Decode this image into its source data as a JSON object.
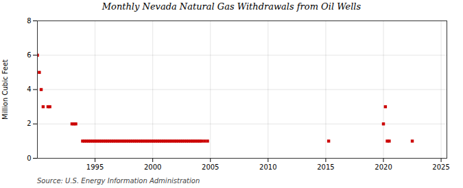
{
  "chart_data": {
    "type": "scatter",
    "title": "Monthly Nevada Natural Gas Withdrawals from Oil Wells",
    "ylabel": "Million Cubic Feet",
    "source": "Source: U.S. Energy Information Administration",
    "color": "#cc0000",
    "marker": "square",
    "grid": true,
    "xlim": [
      1990.0,
      2025.5
    ],
    "ylim": [
      0,
      8
    ],
    "xticks": [
      1995,
      2000,
      2005,
      2010,
      2015,
      2020,
      2025
    ],
    "yticks": [
      0,
      2,
      4,
      6,
      8
    ],
    "x": [
      1990.0,
      1990.17,
      1990.33,
      1990.5,
      1990.92,
      1991.08,
      1993.0,
      1993.17,
      1993.33,
      1993.92,
      1994.08,
      1994.25,
      1994.42,
      1994.58,
      1994.75,
      1994.92,
      1995.08,
      1995.25,
      1995.42,
      1995.58,
      1995.75,
      1995.92,
      1996.08,
      1996.25,
      1996.42,
      1996.58,
      1996.75,
      1996.92,
      1997.08,
      1997.25,
      1997.42,
      1997.58,
      1997.75,
      1997.92,
      1998.08,
      1998.25,
      1998.42,
      1998.58,
      1998.75,
      1998.92,
      1999.08,
      1999.25,
      1999.42,
      1999.58,
      1999.75,
      1999.92,
      2000.08,
      2000.25,
      2000.42,
      2000.58,
      2000.75,
      2000.92,
      2001.08,
      2001.25,
      2001.42,
      2001.58,
      2001.75,
      2001.92,
      2002.08,
      2002.25,
      2002.42,
      2002.58,
      2002.75,
      2002.92,
      2003.08,
      2003.25,
      2003.42,
      2003.58,
      2003.75,
      2003.92,
      2004.08,
      2004.25,
      2004.5,
      2004.75,
      2015.25,
      2020.0,
      2020.17,
      2020.33,
      2020.5,
      2022.5
    ],
    "values": [
      6.0,
      5.0,
      4.0,
      3.0,
      3.0,
      3.0,
      2.0,
      2.0,
      2.0,
      1.0,
      1.0,
      1.0,
      1.0,
      1.0,
      1.0,
      1.0,
      1.0,
      1.0,
      1.0,
      1.0,
      1.0,
      1.0,
      1.0,
      1.0,
      1.0,
      1.0,
      1.0,
      1.0,
      1.0,
      1.0,
      1.0,
      1.0,
      1.0,
      1.0,
      1.0,
      1.0,
      1.0,
      1.0,
      1.0,
      1.0,
      1.0,
      1.0,
      1.0,
      1.0,
      1.0,
      1.0,
      1.0,
      1.0,
      1.0,
      1.0,
      1.0,
      1.0,
      1.0,
      1.0,
      1.0,
      1.0,
      1.0,
      1.0,
      1.0,
      1.0,
      1.0,
      1.0,
      1.0,
      1.0,
      1.0,
      1.0,
      1.0,
      1.0,
      1.0,
      1.0,
      1.0,
      1.0,
      1.0,
      1.0,
      1.0,
      2.0,
      3.0,
      1.0,
      1.0,
      1.0
    ]
  }
}
